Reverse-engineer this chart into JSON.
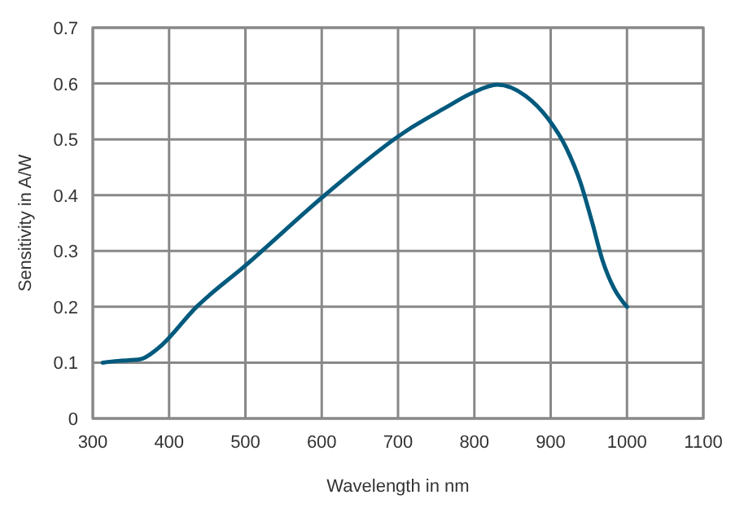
{
  "chart_data": {
    "type": "line",
    "xlabel": "Wavelength in nm",
    "ylabel": "Sensitivity in A/W",
    "xlim": [
      300,
      1100
    ],
    "xticks": [
      300,
      400,
      500,
      600,
      700,
      800,
      900,
      1000,
      1100
    ],
    "ylim": [
      0,
      0.7
    ],
    "yticks": [
      0,
      0.1,
      0.2,
      0.3,
      0.4,
      0.5,
      0.6,
      0.7
    ],
    "grid": true,
    "marker": "none",
    "line_style": "solid",
    "series": [
      {
        "color": "#005a7d",
        "x": [
          313,
          333,
          362,
          385,
          436,
          500,
          604,
          700,
          713,
          760,
          797,
          830,
          867,
          896,
          921,
          939,
          954,
          968,
          983,
          1000
        ],
        "values": [
          0.1,
          0.103,
          0.106,
          0.125,
          0.2,
          0.274,
          0.4,
          0.505,
          0.517,
          0.555,
          0.583,
          0.598,
          0.578,
          0.538,
          0.483,
          0.423,
          0.353,
          0.283,
          0.233,
          0.2
        ]
      }
    ]
  }
}
